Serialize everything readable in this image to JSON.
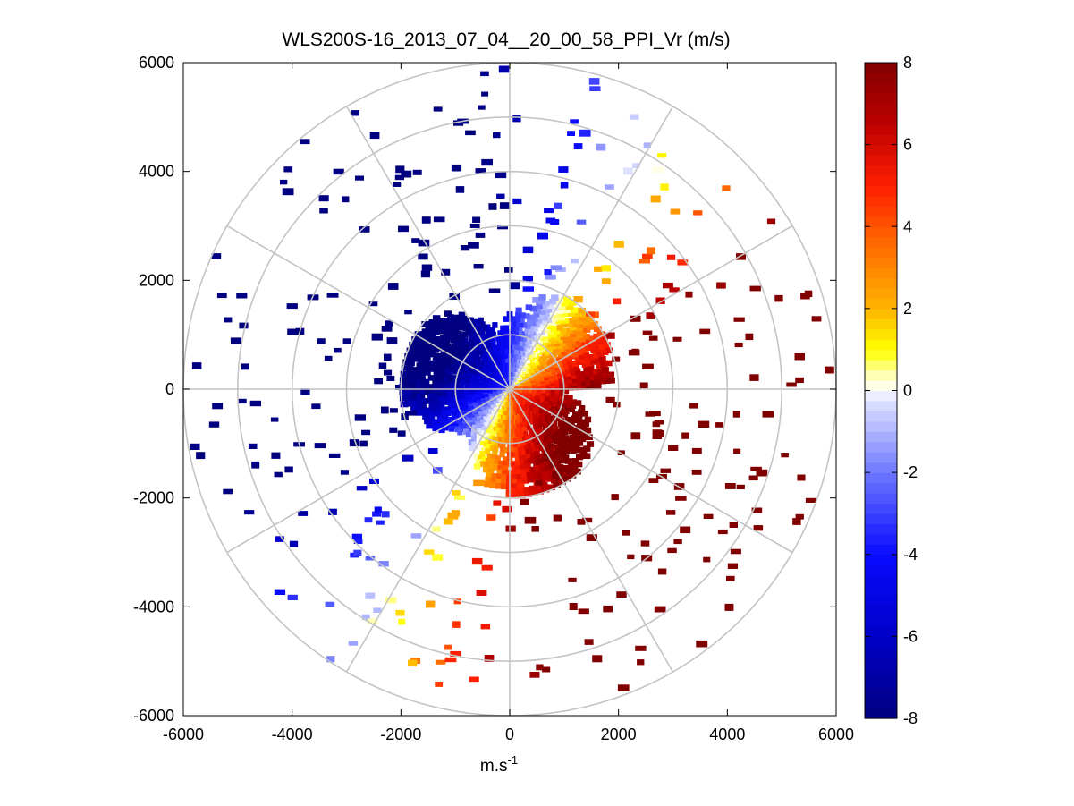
{
  "chart_data": {
    "type": "ppi-polar-scatter",
    "title": "WLS200S-16_2013_07_04__20_00_58_PPI_Vr (m/s)",
    "xlabel_base": "m.s",
    "xlabel_exp": "-1",
    "xlim": [
      -6000,
      6000
    ],
    "ylim": [
      -6000,
      6000
    ],
    "x_ticks": [
      -6000,
      -4000,
      -2000,
      0,
      2000,
      4000,
      6000
    ],
    "y_ticks": [
      6000,
      4000,
      2000,
      0,
      -2000,
      -4000,
      -6000
    ],
    "x_tick_labels": [
      "-6000",
      "-4000",
      "-2000",
      "0",
      "2000",
      "4000",
      "6000"
    ],
    "y_tick_labels": [
      "6000",
      "4000",
      "2000",
      "0",
      "-2000",
      "-4000",
      "-6000"
    ],
    "range_rings": [
      1000,
      2000,
      3000,
      4000,
      5000,
      6000
    ],
    "spoke_angles_deg": [
      0,
      30,
      60,
      90,
      120,
      150,
      180,
      210,
      240,
      270,
      300,
      330
    ],
    "colorbar": {
      "min": -8,
      "max": 8,
      "ticks": [
        8,
        6,
        4,
        2,
        0,
        -2,
        -4,
        -6,
        -8
      ],
      "tick_labels": [
        "8",
        "6",
        "4",
        "2",
        "0",
        "-2",
        "-4",
        "-6",
        "-8"
      ]
    },
    "wind": {
      "dense_radius_m": 2000,
      "zero_line_azimuth_deg": 60,
      "max_velocity_ms": 8
    }
  }
}
